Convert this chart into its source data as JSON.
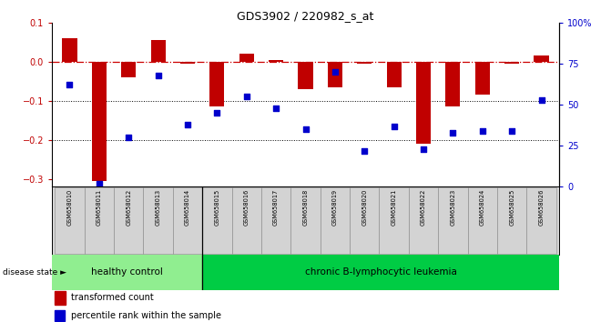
{
  "title": "GDS3902 / 220982_s_at",
  "samples": [
    "GSM658010",
    "GSM658011",
    "GSM658012",
    "GSM658013",
    "GSM658014",
    "GSM658015",
    "GSM658016",
    "GSM658017",
    "GSM658018",
    "GSM658019",
    "GSM658020",
    "GSM658021",
    "GSM658022",
    "GSM658023",
    "GSM658024",
    "GSM658025",
    "GSM658026"
  ],
  "bar_values": [
    0.06,
    -0.305,
    -0.04,
    0.055,
    -0.005,
    -0.115,
    0.02,
    0.005,
    -0.07,
    -0.065,
    -0.005,
    -0.065,
    -0.21,
    -0.115,
    -0.085,
    -0.005,
    0.015
  ],
  "blue_values": [
    62,
    2,
    30,
    68,
    38,
    45,
    55,
    48,
    35,
    70,
    22,
    37,
    23,
    33,
    34,
    34,
    53
  ],
  "healthy_control_count": 5,
  "ylim_left": [
    -0.32,
    0.1
  ],
  "ylim_right": [
    0,
    100
  ],
  "bar_color": "#c00000",
  "dot_color": "#0000cc",
  "healthy_color": "#90ee90",
  "disease_color": "#00cc44",
  "bg_color": "#ffffff",
  "panel_color": "#d3d3d3",
  "hline_color": "#cc0000",
  "dotted_color": "#000000",
  "label_bar": "transformed count",
  "label_dot": "percentile rank within the sample",
  "label_disease": "disease state",
  "label_healthy": "healthy control",
  "label_leukemia": "chronic B-lymphocytic leukemia"
}
